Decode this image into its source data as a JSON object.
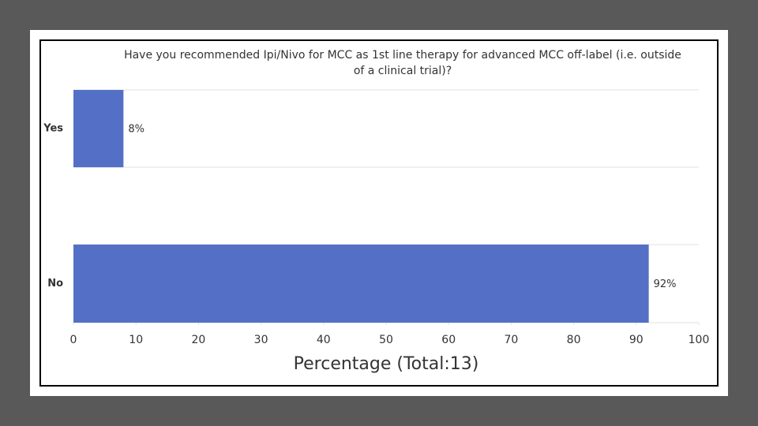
{
  "chart_data": {
    "type": "hbar",
    "title": "Have you recommended Ipi/Nivo for MCC as 1st line therapy for advanced MCC off-label (i.e. outside of a clinical trial)?",
    "categories": [
      "Yes",
      "No"
    ],
    "values": [
      8,
      92
    ],
    "value_labels": [
      "8%",
      "92%"
    ],
    "color": "#5470c6",
    "xlim": [
      0,
      100
    ],
    "xticks": [
      0,
      10,
      20,
      30,
      40,
      50,
      60,
      70,
      80,
      90,
      100
    ],
    "xlabel": "Percentage (Total:13)"
  }
}
